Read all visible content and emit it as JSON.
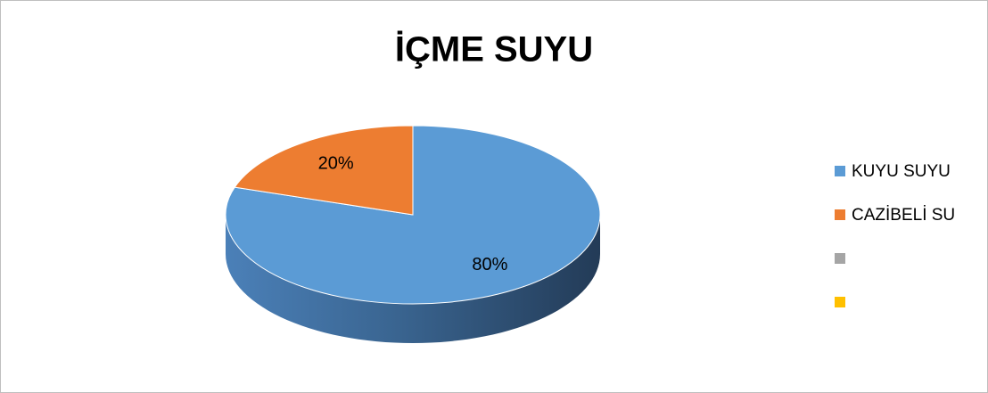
{
  "chart_data": {
    "type": "pie",
    "title": "İÇME SUYU",
    "categories": [
      "KUYU SUYU",
      "CAZİBELİ SU",
      null,
      null
    ],
    "values": [
      80,
      20,
      null,
      null
    ],
    "value_labels": [
      "80%",
      "20%",
      null,
      null
    ],
    "colors": [
      "#5b9bd5",
      "#ed7d31",
      "#a5a5a5",
      "#ffc000"
    ],
    "legend": "right"
  }
}
